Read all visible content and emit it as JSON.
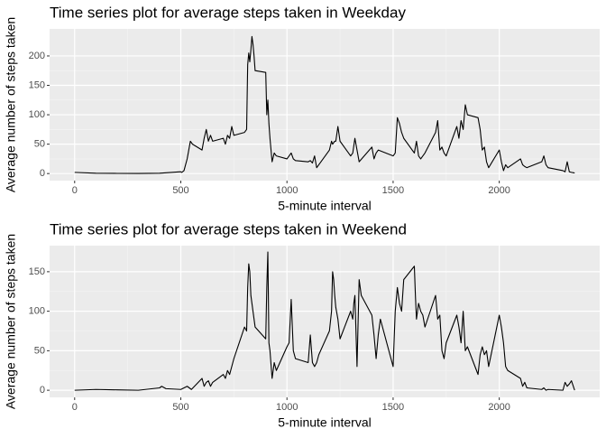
{
  "chart_data": [
    {
      "type": "line",
      "title": "Time series plot for average steps taken in Weekday",
      "x_label": "5-minute interval",
      "y_label": "Average number of steps taken",
      "color": "#000000",
      "grid": true,
      "xlim": [
        -118,
        2473
      ],
      "xticks": [
        0,
        500,
        1000,
        1500,
        2000
      ],
      "ylim": [
        -12,
        246
      ],
      "yticks": [
        0,
        50,
        100,
        150,
        200
      ],
      "x": [
        0,
        100,
        200,
        300,
        400,
        500,
        505,
        515,
        530,
        545,
        555,
        600,
        610,
        620,
        630,
        640,
        650,
        700,
        710,
        720,
        730,
        740,
        750,
        800,
        810,
        815,
        820,
        825,
        830,
        835,
        840,
        845,
        850,
        900,
        905,
        910,
        915,
        920,
        930,
        940,
        950,
        1000,
        1010,
        1020,
        1030,
        1040,
        1100,
        1110,
        1120,
        1130,
        1140,
        1150,
        1200,
        1210,
        1215,
        1225,
        1230,
        1240,
        1250,
        1300,
        1310,
        1320,
        1330,
        1340,
        1400,
        1410,
        1420,
        1430,
        1500,
        1510,
        1520,
        1530,
        1540,
        1550,
        1600,
        1610,
        1620,
        1630,
        1640,
        1650,
        1700,
        1710,
        1720,
        1730,
        1740,
        1750,
        1800,
        1810,
        1820,
        1830,
        1840,
        1850,
        1900,
        1910,
        1920,
        1930,
        1940,
        1950,
        2000,
        2010,
        2020,
        2030,
        2040,
        2100,
        2110,
        2120,
        2130,
        2200,
        2210,
        2220,
        2230,
        2300,
        2310,
        2320,
        2330,
        2340,
        2355
      ],
      "values": [
        2,
        0.5,
        0.3,
        0.2,
        0.5,
        3,
        2,
        5,
        25,
        55,
        50,
        40,
        60,
        75,
        55,
        65,
        55,
        60,
        50,
        65,
        60,
        80,
        65,
        70,
        75,
        185,
        205,
        190,
        210,
        233,
        220,
        200,
        175,
        172,
        100,
        125,
        85,
        60,
        20,
        35,
        30,
        25,
        30,
        35,
        25,
        22,
        20,
        22,
        18,
        30,
        10,
        15,
        40,
        55,
        50,
        55,
        55,
        80,
        55,
        30,
        35,
        60,
        40,
        20,
        45,
        25,
        35,
        40,
        30,
        35,
        95,
        85,
        70,
        60,
        35,
        55,
        30,
        25,
        30,
        35,
        70,
        90,
        40,
        45,
        35,
        30,
        80,
        60,
        90,
        75,
        117,
        100,
        95,
        75,
        40,
        45,
        20,
        10,
        40,
        20,
        5,
        15,
        10,
        25,
        15,
        12,
        10,
        20,
        30,
        15,
        10,
        5,
        3,
        20,
        3,
        2,
        1
      ]
    },
    {
      "type": "line",
      "title": "Time series plot for average steps taken in Weekend",
      "x_label": "5-minute interval",
      "y_label": "Average number of steps taken",
      "color": "#000000",
      "grid": true,
      "xlim": [
        -118,
        2473
      ],
      "xticks": [
        0,
        500,
        1000,
        1500,
        2000
      ],
      "ylim": [
        -9,
        183
      ],
      "yticks": [
        0,
        50,
        100,
        150
      ],
      "x": [
        0,
        100,
        200,
        300,
        400,
        410,
        430,
        500,
        530,
        550,
        600,
        610,
        620,
        630,
        640,
        650,
        700,
        710,
        720,
        730,
        740,
        750,
        800,
        810,
        815,
        820,
        825,
        830,
        840,
        850,
        900,
        905,
        910,
        915,
        920,
        930,
        940,
        950,
        1000,
        1010,
        1020,
        1030,
        1040,
        1100,
        1110,
        1120,
        1130,
        1140,
        1150,
        1200,
        1210,
        1215,
        1220,
        1225,
        1230,
        1240,
        1250,
        1300,
        1310,
        1315,
        1320,
        1330,
        1340,
        1350,
        1400,
        1410,
        1420,
        1430,
        1440,
        1500,
        1510,
        1520,
        1530,
        1540,
        1550,
        1600,
        1605,
        1610,
        1620,
        1630,
        1640,
        1650,
        1700,
        1710,
        1720,
        1730,
        1740,
        1750,
        1800,
        1810,
        1820,
        1830,
        1840,
        1850,
        1900,
        1910,
        1920,
        1930,
        1940,
        1950,
        2000,
        2010,
        2020,
        2030,
        2040,
        2100,
        2110,
        2120,
        2130,
        2200,
        2210,
        2220,
        2230,
        2300,
        2310,
        2320,
        2330,
        2340,
        2355
      ],
      "values": [
        0,
        1,
        0.5,
        0,
        3,
        5,
        2,
        1,
        5,
        1,
        15,
        5,
        10,
        12,
        5,
        10,
        20,
        15,
        25,
        20,
        30,
        40,
        80,
        75,
        130,
        160,
        150,
        120,
        100,
        80,
        65,
        130,
        175,
        60,
        50,
        15,
        35,
        25,
        55,
        60,
        115,
        50,
        40,
        35,
        70,
        35,
        30,
        35,
        45,
        75,
        100,
        150,
        140,
        120,
        105,
        90,
        65,
        100,
        90,
        110,
        120,
        30,
        140,
        120,
        95,
        70,
        40,
        70,
        90,
        30,
        100,
        130,
        110,
        100,
        140,
        157,
        120,
        90,
        110,
        100,
        95,
        80,
        120,
        90,
        95,
        50,
        40,
        60,
        95,
        80,
        60,
        100,
        50,
        55,
        20,
        45,
        55,
        45,
        50,
        30,
        95,
        80,
        60,
        30,
        25,
        15,
        5,
        10,
        3,
        1,
        3,
        0,
        1,
        0,
        10,
        5,
        8,
        12,
        0
      ]
    }
  ]
}
